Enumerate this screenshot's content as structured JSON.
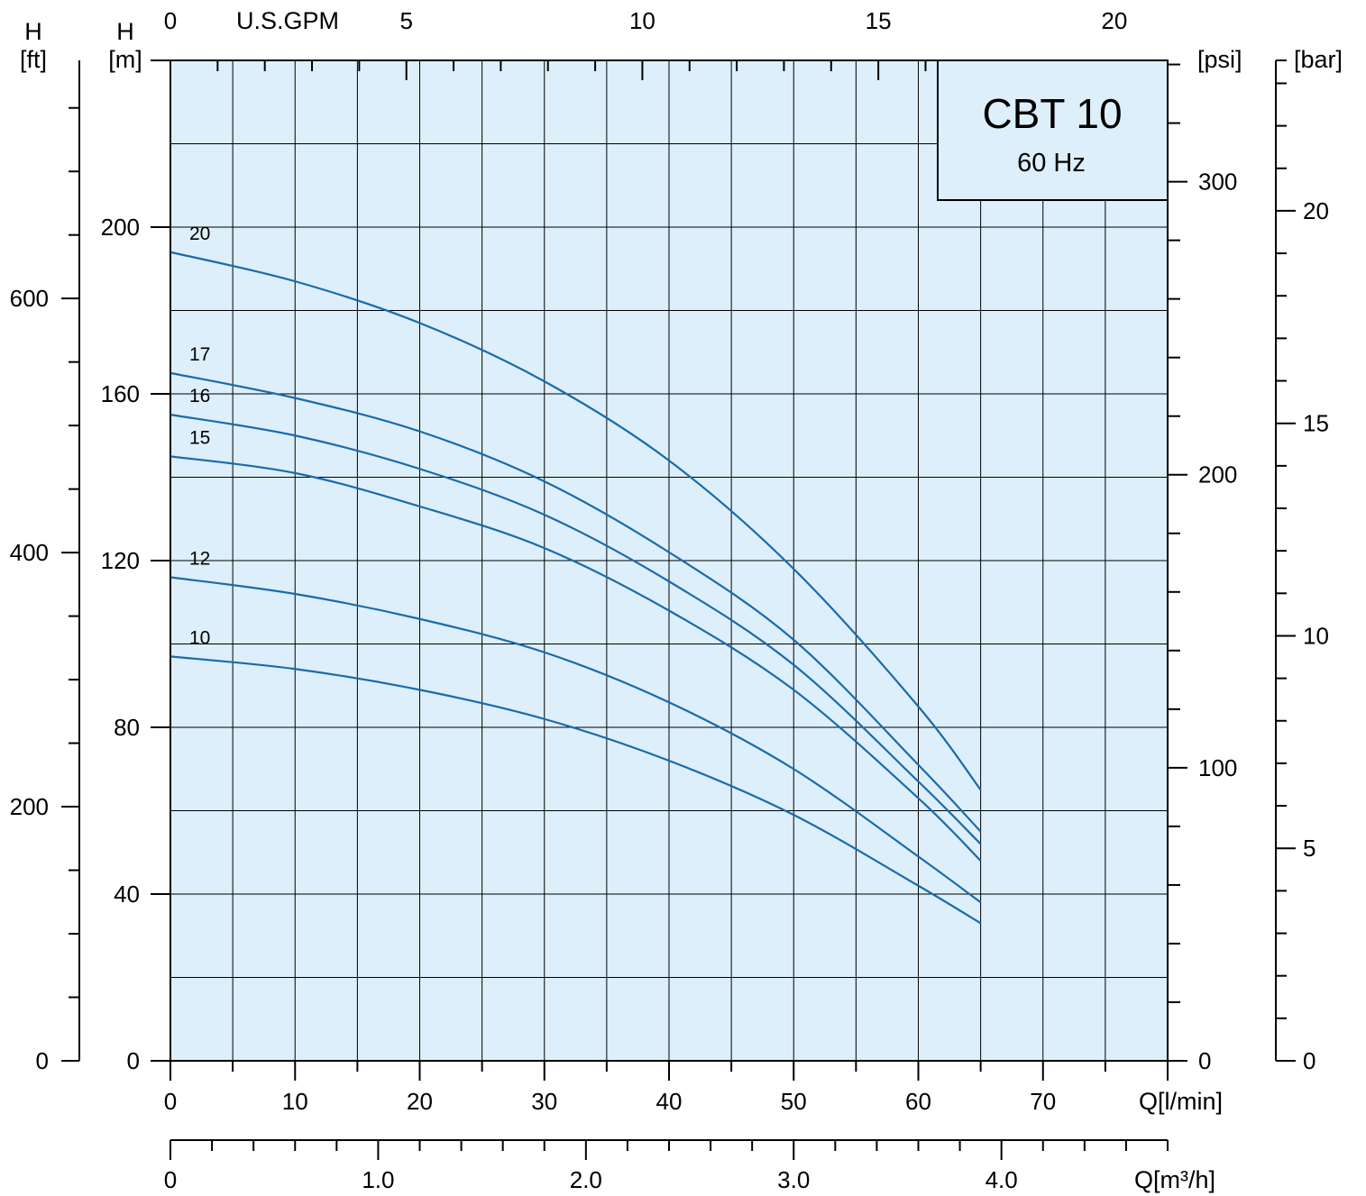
{
  "chart_data": {
    "type": "line",
    "title": "CBT 10",
    "subtitle": "60 Hz",
    "grid": true,
    "colors": {
      "background": "#ddeffa",
      "curve": "#1a6aad",
      "grid": "#000000"
    },
    "x_axes": {
      "primary": {
        "label": "Q[l/min]",
        "range": [
          0,
          80
        ],
        "ticks": [
          0,
          10,
          20,
          30,
          40,
          50,
          60,
          70
        ],
        "major_step": 10,
        "minor_step": 5
      },
      "m3h": {
        "label": "Q[m³/h]",
        "range": [
          0,
          4.8
        ],
        "ticks": [
          "0",
          "1.0",
          "2.0",
          "3.0",
          "4.0"
        ],
        "minor_step": 0.2
      },
      "gpm": {
        "label": "U.S.GPM",
        "range": [
          0,
          21.13
        ],
        "ticks": [
          0,
          5,
          10,
          15,
          20
        ],
        "minor_step": 1
      }
    },
    "y_axes": {
      "m": {
        "label": "H\n[m]",
        "range": [
          0,
          240
        ],
        "ticks": [
          0,
          40,
          80,
          120,
          160,
          200
        ],
        "grid_step": 20
      },
      "ft": {
        "label": "H\n[ft]",
        "range": [
          0,
          787.4
        ],
        "ticks": [
          0,
          200,
          400,
          600
        ],
        "minor_step": 50
      },
      "psi": {
        "label": "[psi]",
        "range": [
          0,
          341.4
        ],
        "ticks": [
          0,
          100,
          200,
          300
        ],
        "minor_step": 20
      },
      "bar": {
        "label": "[bar]",
        "range": [
          0,
          23.54
        ],
        "ticks": [
          0,
          5,
          10,
          15,
          20
        ],
        "minor_step": 2
      }
    },
    "series": [
      {
        "name": "20",
        "x": [
          0,
          10,
          20,
          30,
          40,
          50,
          60,
          65
        ],
        "y": [
          194,
          187,
          177,
          163,
          144,
          118,
          85,
          65
        ]
      },
      {
        "name": "17",
        "x": [
          0,
          10,
          20,
          30,
          40,
          50,
          60,
          65
        ],
        "y": [
          165,
          159,
          151,
          139,
          122,
          101,
          71,
          55
        ]
      },
      {
        "name": "16",
        "x": [
          0,
          10,
          20,
          30,
          40,
          50,
          60,
          65
        ],
        "y": [
          155,
          150,
          142,
          131,
          115,
          95,
          67,
          52
        ]
      },
      {
        "name": "15",
        "x": [
          0,
          10,
          20,
          30,
          40,
          50,
          60,
          65
        ],
        "y": [
          145,
          141,
          133,
          123,
          108,
          89,
          63,
          48
        ]
      },
      {
        "name": "12",
        "x": [
          0,
          10,
          20,
          30,
          40,
          50,
          60,
          65
        ],
        "y": [
          116,
          112,
          106,
          98,
          86,
          70,
          49,
          38
        ]
      },
      {
        "name": "10",
        "x": [
          0,
          10,
          20,
          30,
          40,
          50,
          60,
          65
        ],
        "y": [
          97,
          94,
          89,
          82,
          72,
          59,
          42,
          33
        ]
      }
    ]
  }
}
